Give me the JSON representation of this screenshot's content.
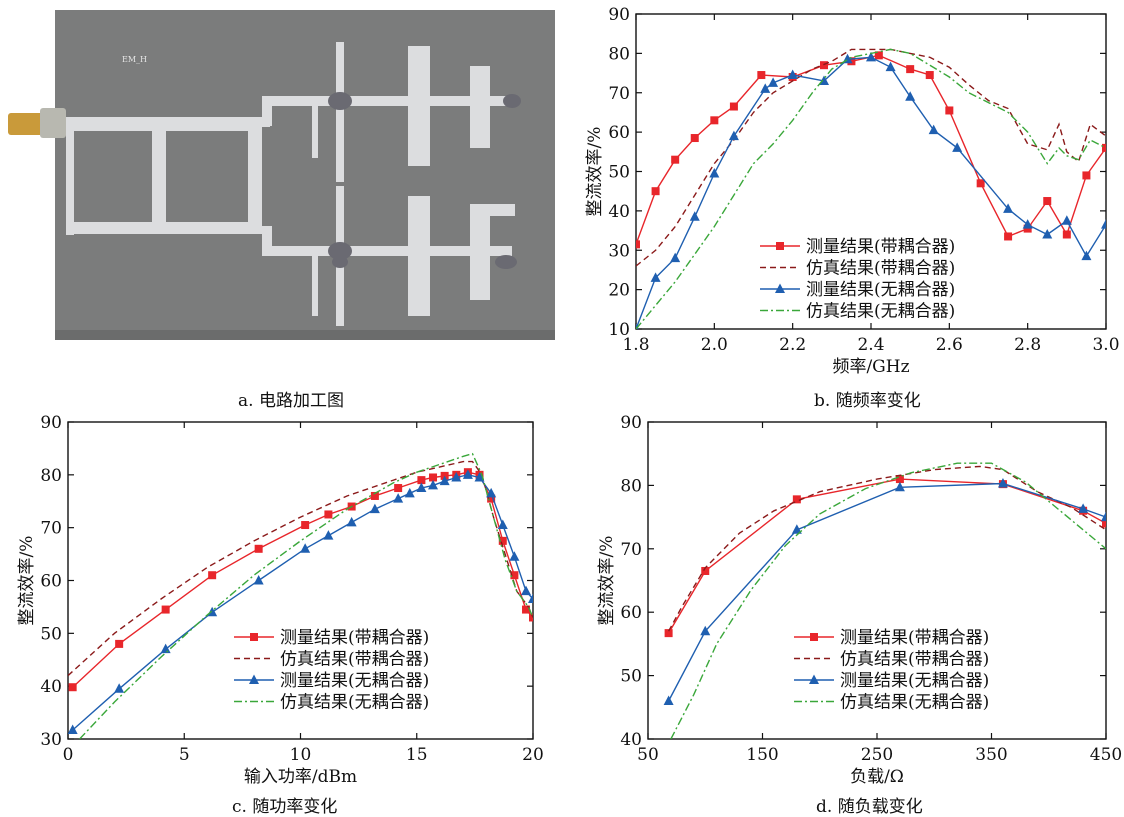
{
  "captions": {
    "a": "a. 电路加工图",
    "b": "b. 随频率变化",
    "c": "c. 随功率变化",
    "d": "d. 随负载变化"
  },
  "photo": {
    "label": "EM_H",
    "colors": {
      "board": "#7b7c7c",
      "trace": "#dcdddf",
      "connector": "#c99a3a",
      "solder": "#6a6a72"
    }
  },
  "series_style": [
    {
      "color": "#e8262b",
      "dash": "none",
      "marker": "square"
    },
    {
      "color": "#8b1a1a",
      "dash": "6,4",
      "marker": "none"
    },
    {
      "color": "#1f5fb0",
      "dash": "none",
      "marker": "triangle"
    },
    {
      "color": "#3aa73a",
      "dash": "8,3,2,3",
      "marker": "none"
    }
  ],
  "chart_data": [
    {
      "id": "b",
      "type": "line",
      "xlabel": "频率/GHz",
      "ylabel": "整流效率/%",
      "xlim": [
        1.8,
        3.0
      ],
      "ylim": [
        10,
        90
      ],
      "xticks": [
        1.8,
        2.0,
        2.2,
        2.4,
        2.6,
        2.8,
        3.0
      ],
      "xtick_labels": [
        "1.8",
        "2.0",
        "2.2",
        "2.4",
        "2.6",
        "2.8",
        "3.0"
      ],
      "yticks": [
        10,
        20,
        30,
        40,
        50,
        60,
        70,
        80,
        90
      ],
      "ytick_labels": [
        "10",
        "20",
        "30",
        "40",
        "50",
        "60",
        "70",
        "80",
        "90"
      ],
      "grid": false,
      "legend_position": "lower-center",
      "series": [
        {
          "name": "测量结果(带耦合器)",
          "x": [
            1.8,
            1.85,
            1.9,
            1.95,
            2.0,
            2.05,
            2.12,
            2.2,
            2.28,
            2.35,
            2.42,
            2.5,
            2.55,
            2.6,
            2.68,
            2.75,
            2.8,
            2.85,
            2.9,
            2.95,
            3.0
          ],
          "y": [
            31.5,
            45,
            53,
            58.5,
            63,
            66.5,
            74.5,
            74,
            77,
            78,
            79.5,
            76,
            74.5,
            65.5,
            47,
            33.5,
            35.5,
            42.5,
            34,
            49,
            56
          ]
        },
        {
          "name": "仿真结果(带耦合器)",
          "x": [
            1.8,
            1.85,
            1.9,
            1.95,
            2.0,
            2.05,
            2.1,
            2.15,
            2.2,
            2.25,
            2.3,
            2.35,
            2.4,
            2.45,
            2.5,
            2.55,
            2.6,
            2.65,
            2.7,
            2.75,
            2.8,
            2.85,
            2.88,
            2.9,
            2.93,
            2.96,
            3.0
          ],
          "y": [
            26,
            30,
            36,
            44,
            52,
            58,
            65,
            70,
            73,
            76,
            78,
            81,
            81,
            81,
            80,
            79,
            76.5,
            72,
            68,
            66,
            57,
            55.5,
            62,
            55,
            52.5,
            62,
            59
          ]
        },
        {
          "name": "测量结果(无耦合器)",
          "x": [
            1.8,
            1.85,
            1.9,
            1.95,
            2.0,
            2.05,
            2.13,
            2.15,
            2.2,
            2.28,
            2.34,
            2.4,
            2.45,
            2.5,
            2.56,
            2.62,
            2.75,
            2.8,
            2.85,
            2.9,
            2.95,
            3.0
          ],
          "y": [
            10,
            23,
            28,
            38.5,
            49.5,
            59,
            71,
            72.5,
            74.5,
            73,
            78.5,
            79,
            76.5,
            69,
            60.5,
            56,
            40.5,
            36.5,
            34,
            37.5,
            28.5,
            36.5
          ]
        },
        {
          "name": "仿真结果(无耦合器)",
          "x": [
            1.8,
            1.85,
            1.9,
            1.95,
            2.0,
            2.05,
            2.1,
            2.15,
            2.2,
            2.25,
            2.3,
            2.35,
            2.4,
            2.45,
            2.5,
            2.55,
            2.6,
            2.65,
            2.7,
            2.75,
            2.8,
            2.85,
            2.88,
            2.9,
            2.93,
            2.96,
            3.0
          ],
          "y": [
            10,
            16,
            22,
            29,
            36,
            44,
            52,
            57,
            63,
            70,
            76,
            79,
            80,
            81,
            80,
            77,
            74,
            70,
            67.5,
            65,
            60,
            52,
            56,
            54,
            53,
            58,
            56
          ]
        }
      ]
    },
    {
      "id": "c",
      "type": "line",
      "xlabel": "输入功率/dBm",
      "ylabel": "整流效率/%",
      "xlim": [
        0,
        20
      ],
      "ylim": [
        30,
        90
      ],
      "xticks": [
        0,
        5,
        10,
        15,
        20
      ],
      "xtick_labels": [
        "0",
        "5",
        "10",
        "15",
        "20"
      ],
      "yticks": [
        30,
        40,
        50,
        60,
        70,
        80,
        90
      ],
      "ytick_labels": [
        "30",
        "40",
        "50",
        "60",
        "70",
        "80",
        "90"
      ],
      "grid": false,
      "legend_position": "lower-center",
      "series": [
        {
          "name": "测量结果(带耦合器)",
          "x": [
            0.2,
            2.2,
            4.2,
            6.2,
            8.2,
            10.2,
            11.2,
            12.2,
            13.2,
            14.2,
            15.2,
            15.7,
            16.2,
            16.7,
            17.2,
            17.7,
            18.2,
            18.7,
            19.2,
            19.7,
            20.0
          ],
          "y": [
            39.8,
            48,
            54.5,
            61,
            66,
            70.5,
            72.5,
            74,
            76,
            77.5,
            79,
            79.5,
            79.8,
            80,
            80.5,
            80,
            75.5,
            67.5,
            61,
            54.5,
            53
          ]
        },
        {
          "name": "仿真结果(带耦合器)",
          "x": [
            0,
            2,
            4,
            6,
            8,
            10,
            12,
            14,
            15,
            16,
            17,
            17.4,
            17.8,
            18.3,
            18.8,
            19.3,
            19.8,
            20.0
          ],
          "y": [
            42,
            50,
            56.5,
            62.5,
            67.5,
            72,
            76,
            79,
            80.5,
            81.5,
            82.5,
            82.5,
            80,
            72,
            65,
            58,
            55,
            53
          ]
        },
        {
          "name": "测量结果(无耦合器)",
          "x": [
            0.2,
            2.2,
            4.2,
            6.2,
            8.2,
            10.2,
            11.2,
            12.2,
            13.2,
            14.2,
            14.7,
            15.2,
            15.7,
            16.2,
            16.7,
            17.2,
            17.7,
            18.2,
            18.7,
            19.2,
            19.7,
            20.0
          ],
          "y": [
            31.7,
            39.5,
            47,
            54,
            60,
            66,
            68.5,
            71,
            73.5,
            75.5,
            76.5,
            77.5,
            78,
            78.8,
            79.5,
            80,
            79.5,
            76.5,
            70.5,
            64.5,
            58,
            56.5
          ]
        },
        {
          "name": "仿真结果(无耦合器)",
          "x": [
            0.5,
            2,
            4,
            6,
            8,
            10,
            12,
            14,
            15,
            16,
            17,
            17.4,
            17.8,
            18.3,
            18.8,
            19.3,
            19.8,
            20.0
          ],
          "y": [
            30,
            37,
            45.5,
            53.5,
            61,
            67.5,
            73.5,
            78.5,
            80.5,
            82,
            83.5,
            84,
            80,
            72,
            64,
            58,
            55,
            53
          ]
        }
      ]
    },
    {
      "id": "d",
      "type": "line",
      "xlabel": "负载/Ω",
      "ylabel": "整流效率/%",
      "xlim": [
        50,
        450
      ],
      "ylim": [
        40,
        90
      ],
      "xticks": [
        50,
        150,
        250,
        350,
        450
      ],
      "xtick_labels": [
        "50",
        "150",
        "250",
        "350",
        "450"
      ],
      "yticks": [
        40,
        50,
        60,
        70,
        80,
        90
      ],
      "ytick_labels": [
        "40",
        "50",
        "60",
        "70",
        "80",
        "90"
      ],
      "grid": false,
      "legend_position": "lower-right",
      "series": [
        {
          "name": "测量结果(带耦合器)",
          "x": [
            68,
            100,
            180,
            270,
            360,
            430,
            450
          ],
          "y": [
            56.7,
            66.5,
            77.8,
            81,
            80.2,
            76,
            74
          ]
        },
        {
          "name": "仿真结果(带耦合器)",
          "x": [
            68,
            80,
            100,
            130,
            160,
            200,
            250,
            300,
            340,
            360,
            390,
            420,
            450
          ],
          "y": [
            57,
            61,
            67,
            72.5,
            76,
            79,
            81,
            82.5,
            83,
            82.5,
            79,
            76.5,
            73
          ]
        },
        {
          "name": "测量结果(无耦合器)",
          "x": [
            68,
            100,
            180,
            270,
            360,
            430,
            450
          ],
          "y": [
            46,
            57,
            73,
            79.7,
            80.3,
            76.3,
            75
          ]
        },
        {
          "name": "仿真结果(无耦合器)",
          "x": [
            70,
            90,
            110,
            140,
            170,
            200,
            240,
            280,
            320,
            350,
            380,
            410,
            450
          ],
          "y": [
            40,
            47,
            55,
            63.5,
            70.5,
            75.5,
            79.5,
            82,
            83.5,
            83.5,
            80.5,
            76,
            70
          ]
        }
      ]
    }
  ]
}
